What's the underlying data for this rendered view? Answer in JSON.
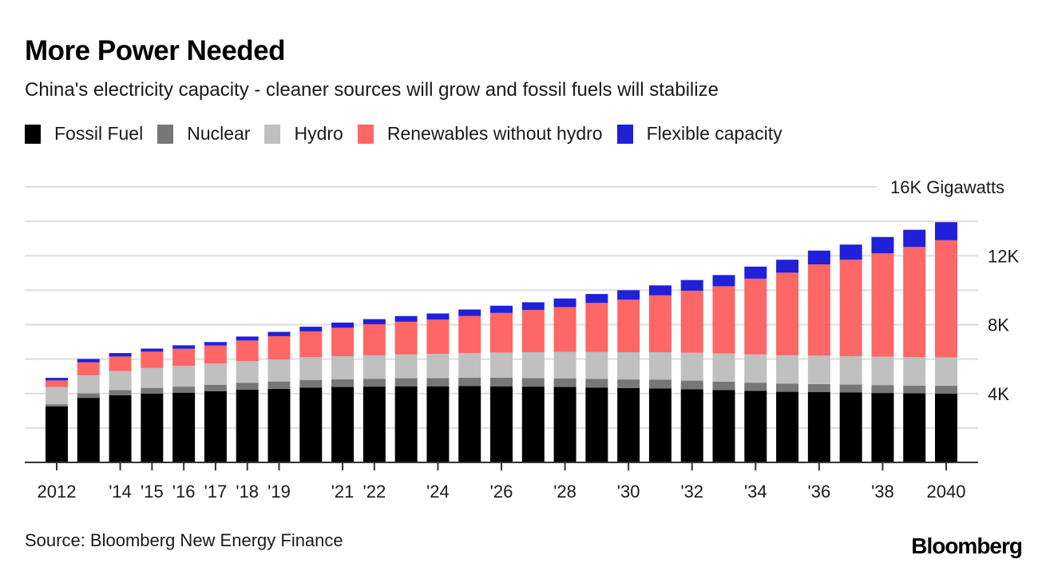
{
  "header": {
    "title": "More Power Needed",
    "subtitle": "China's electricity capacity - cleaner sources will grow and fossil fuels will stabilize"
  },
  "footer": {
    "source": "Source: Bloomberg New Energy Finance",
    "logo": "Bloomberg"
  },
  "chart_data": {
    "type": "bar",
    "stacked": true,
    "title": "More Power Needed",
    "subtitle": "China's electricity capacity - cleaner sources will grow and fossil fuels will stabilize",
    "xlabel": "",
    "ylabel": "Gigawatts",
    "ylim": [
      0,
      16000
    ],
    "yticks": [
      {
        "value": 4000,
        "label": "4K"
      },
      {
        "value": 8000,
        "label": "8K"
      },
      {
        "value": 12000,
        "label": "12K"
      },
      {
        "value": 16000,
        "label": "16K Gigawatts"
      }
    ],
    "gridlines_every": 2000,
    "grid": true,
    "legend_position": "top",
    "categories": [
      "2012",
      "2013",
      "2014",
      "2015",
      "2016",
      "2017",
      "2018",
      "2019",
      "2020",
      "2021",
      "2022",
      "2023",
      "2024",
      "2025",
      "2026",
      "2027",
      "2028",
      "2029",
      "2030",
      "2031",
      "2032",
      "2033",
      "2034",
      "2035",
      "2036",
      "2037",
      "2038",
      "2039",
      "2040"
    ],
    "xtick_labels": {
      "2012": "2012",
      "2014": "'14",
      "2015": "'15",
      "2016": "'16",
      "2017": "'17",
      "2018": "'18",
      "2019": "'19",
      "2021": "'21",
      "2022": "'22",
      "2024": "'24",
      "2026": "'26",
      "2028": "'28",
      "2030": "'30",
      "2032": "'32",
      "2034": "'34",
      "2036": "'36",
      "2038": "'38",
      "2040": "2040"
    },
    "series": [
      {
        "name": "Fossil Fuel",
        "color": "#000000",
        "values": [
          3250,
          3750,
          3900,
          4000,
          4050,
          4130,
          4220,
          4270,
          4350,
          4380,
          4400,
          4420,
          4420,
          4430,
          4420,
          4400,
          4380,
          4350,
          4320,
          4300,
          4250,
          4200,
          4150,
          4100,
          4080,
          4060,
          4030,
          4010,
          4000
        ]
      },
      {
        "name": "Nuclear",
        "color": "#777777",
        "values": [
          130,
          260,
          300,
          330,
          350,
          380,
          410,
          430,
          440,
          450,
          460,
          470,
          480,
          490,
          500,
          500,
          500,
          500,
          500,
          500,
          500,
          490,
          480,
          470,
          470,
          460,
          460,
          450,
          450
        ]
      },
      {
        "name": "Hydro",
        "color": "#c0c0c0",
        "values": [
          1000,
          1050,
          1100,
          1150,
          1200,
          1230,
          1250,
          1280,
          1320,
          1340,
          1360,
          1380,
          1400,
          1430,
          1460,
          1500,
          1540,
          1560,
          1580,
          1600,
          1620,
          1640,
          1640,
          1650,
          1650,
          1650,
          1650,
          1650,
          1650
        ]
      },
      {
        "name": "Renewables without hydro",
        "color": "#ff6666",
        "values": [
          380,
          750,
          850,
          950,
          1000,
          1050,
          1200,
          1350,
          1500,
          1650,
          1800,
          1900,
          2000,
          2150,
          2300,
          2450,
          2600,
          2850,
          3050,
          3300,
          3600,
          3900,
          4400,
          4800,
          5300,
          5600,
          6000,
          6400,
          6800
        ]
      },
      {
        "name": "Flexible capacity",
        "color": "#2020d8",
        "values": [
          150,
          200,
          200,
          180,
          200,
          200,
          230,
          250,
          270,
          300,
          300,
          330,
          350,
          380,
          420,
          450,
          500,
          520,
          550,
          580,
          620,
          650,
          700,
          750,
          800,
          880,
          950,
          1000,
          1050
        ]
      }
    ]
  }
}
